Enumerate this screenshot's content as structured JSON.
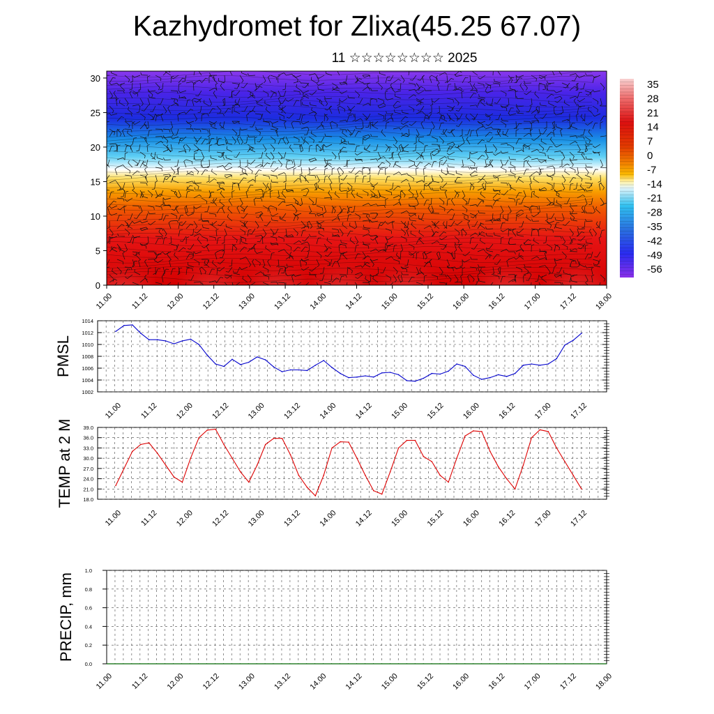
{
  "title": "Kazhydromet for Zlixa(45.25 67.07)",
  "subtitle": "11 ☆☆☆☆☆☆☆☆ 2025",
  "x_labels": [
    "11.00",
    "11.12",
    "12.00",
    "12.12",
    "13.00",
    "13.12",
    "14.00",
    "14.12",
    "15.00",
    "15.12",
    "16.00",
    "16.12",
    "17.00",
    "17.12",
    "18.00"
  ],
  "chart_data": [
    {
      "type": "heatmap",
      "name": "height-time section",
      "y_ticks": [
        "0",
        "5",
        "10",
        "15",
        "20",
        "25",
        "30"
      ],
      "ylim": [
        0,
        31
      ],
      "colorbar": {
        "labels": [
          "35",
          "28",
          "21",
          "14",
          "7",
          "0",
          "-7",
          "-14",
          "-21",
          "-28",
          "-35",
          "-42",
          "-49",
          "-56"
        ],
        "colors": [
          "#f7c6c6",
          "#f08080",
          "#e11a1a",
          "#d40000",
          "#e63000",
          "#f07800",
          "#f8a800",
          "#fde26a",
          "#d8f0f8",
          "#3cc4f0",
          "#2a88e0",
          "#2a3cf0",
          "#3a20e6",
          "#8a2ee8"
        ]
      }
    },
    {
      "type": "line",
      "ylabel": "PMSL",
      "y_ticks": [
        "1002",
        "1004",
        "1006",
        "1008",
        "1010",
        "1012",
        "1014"
      ],
      "ylim": [
        1002,
        1014
      ],
      "color": "#0000cc",
      "values": [
        1012.2,
        1013.2,
        1013.3,
        1011.9,
        1010.8,
        1010.8,
        1010.6,
        1010.1,
        1010.6,
        1010.9,
        1010.0,
        1008.2,
        1006.7,
        1006.3,
        1007.5,
        1006.6,
        1007.0,
        1007.9,
        1007.4,
        1006.2,
        1005.4,
        1005.7,
        1005.7,
        1005.6,
        1006.5,
        1007.3,
        1006.1,
        1005.1,
        1004.4,
        1004.5,
        1004.7,
        1004.5,
        1005.2,
        1005.3,
        1004.9,
        1003.9,
        1003.8,
        1004.3,
        1005.1,
        1005.0,
        1005.5,
        1006.7,
        1006.3,
        1004.8,
        1004.1,
        1004.4,
        1004.9,
        1004.6,
        1005.1,
        1006.5,
        1006.7,
        1006.5,
        1006.7,
        1007.6,
        1009.9,
        1010.7,
        1011.9
      ]
    },
    {
      "type": "line",
      "ylabel": "TEMP at 2 M",
      "y_ticks": [
        "18.0",
        "21.0",
        "24.0",
        "27.0",
        "30.0",
        "33.0",
        "36.0",
        "39.0"
      ],
      "ylim": [
        18,
        39
      ],
      "color": "#dd0000",
      "values": [
        22.0,
        27.0,
        32.0,
        34.0,
        34.5,
        31.5,
        28.0,
        24.5,
        23.0,
        30.0,
        36.0,
        38.2,
        38.5,
        34.0,
        30.0,
        26.0,
        23.0,
        28.0,
        34.0,
        35.8,
        35.8,
        31.0,
        25.0,
        21.5,
        19.0,
        25.0,
        33.0,
        34.8,
        34.7,
        30.0,
        25.0,
        20.5,
        19.5,
        26.0,
        33.0,
        35.2,
        35.2,
        30.5,
        29.0,
        25.0,
        23.0,
        30.0,
        36.5,
        38.0,
        37.8,
        32.0,
        27.5,
        24.0,
        21.0,
        28.0,
        36.0,
        38.3,
        37.8,
        33.0,
        29.0,
        25.0,
        21.0
      ]
    },
    {
      "type": "line",
      "ylabel": "PRECIP, mm",
      "y_ticks": [
        "0.0",
        "0.2",
        "0.4",
        "0.6",
        "0.8",
        "1.0"
      ],
      "ylim": [
        0,
        1
      ],
      "color": "#006600",
      "values": [
        0,
        0,
        0,
        0,
        0,
        0,
        0,
        0,
        0,
        0,
        0,
        0,
        0,
        0,
        0,
        0,
        0,
        0,
        0,
        0,
        0,
        0,
        0,
        0,
        0,
        0,
        0,
        0,
        0,
        0,
        0,
        0,
        0,
        0,
        0,
        0,
        0,
        0,
        0,
        0,
        0,
        0,
        0,
        0,
        0,
        0,
        0,
        0,
        0,
        0,
        0,
        0,
        0,
        0,
        0,
        0,
        0,
        0
      ]
    }
  ]
}
